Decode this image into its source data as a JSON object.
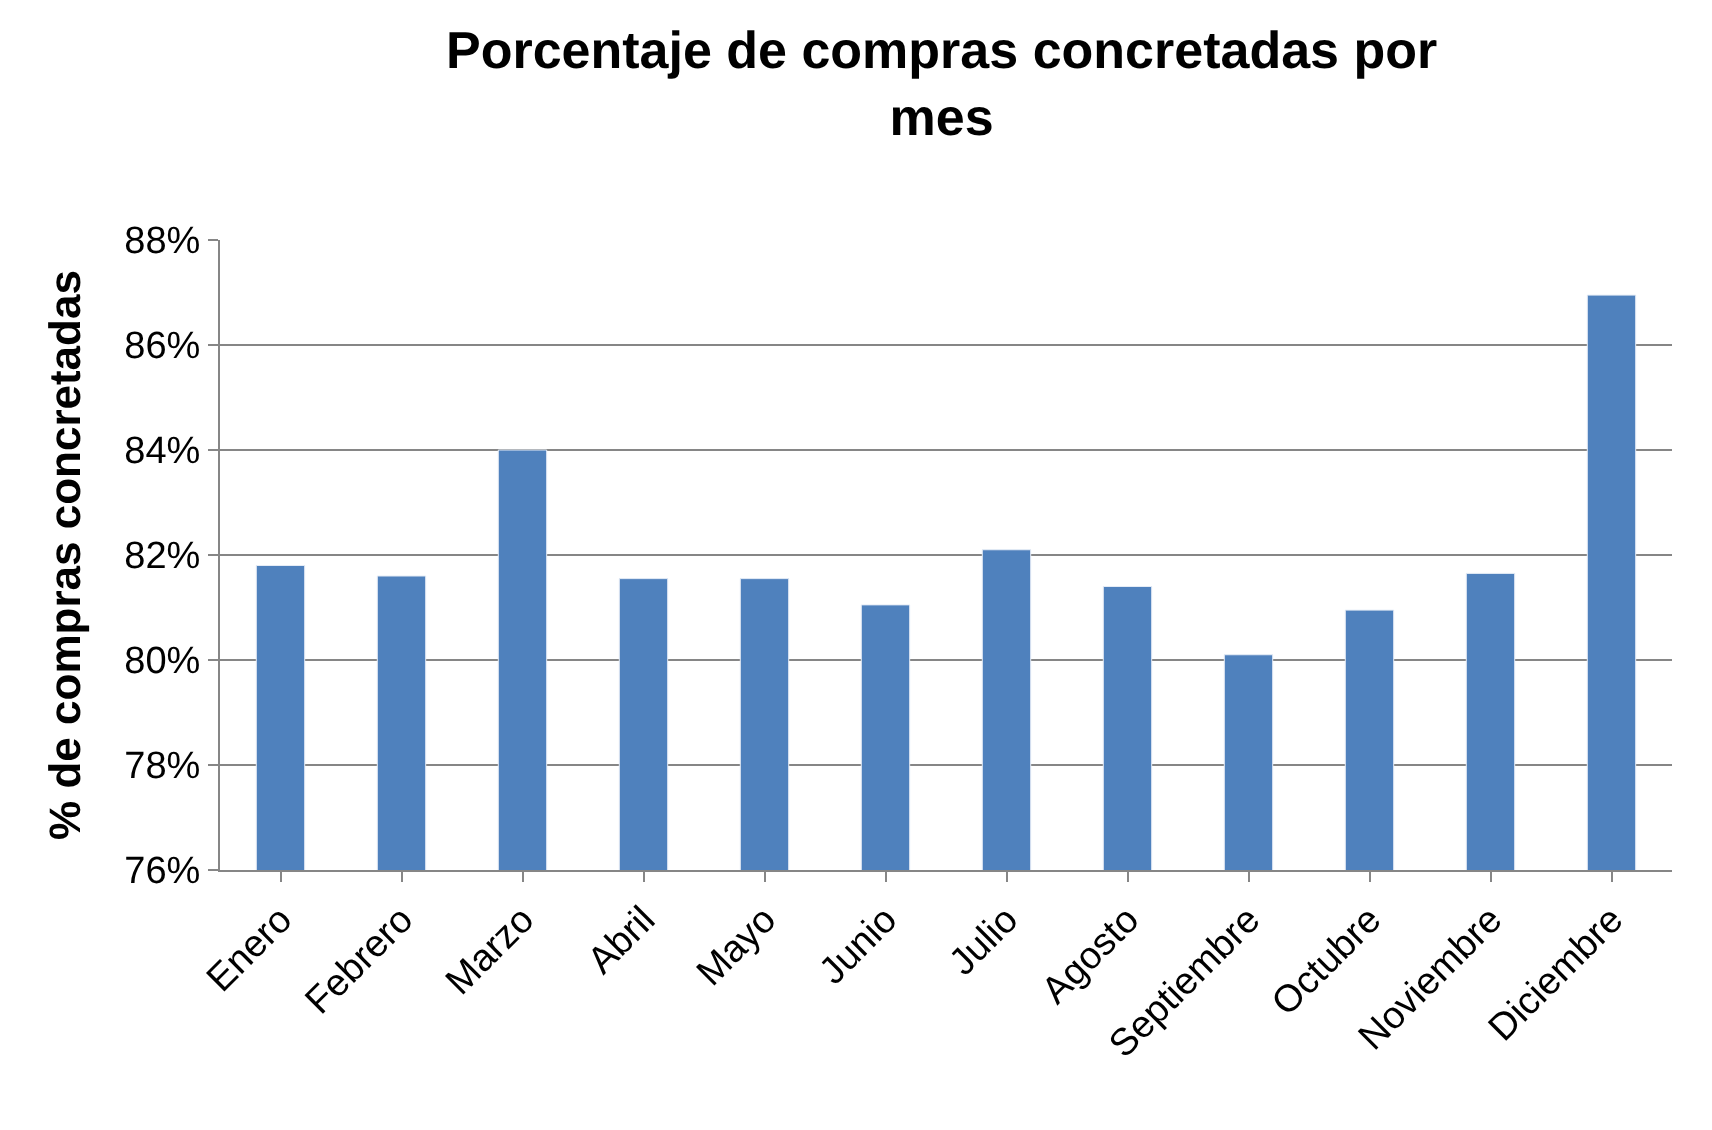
{
  "chart_data": {
    "type": "bar",
    "title": "Porcentaje de compras concretadas por mes",
    "ylabel": "% de compras concretadas",
    "categories": [
      "Enero",
      "Febrero",
      "Marzo",
      "Abril",
      "Mayo",
      "Junio",
      "Julio",
      "Agosto",
      "Septiembre",
      "Octubre",
      "Noviembre",
      "Diciembre"
    ],
    "values": [
      81.8,
      81.6,
      84.0,
      81.55,
      81.55,
      81.05,
      82.1,
      81.4,
      80.1,
      80.95,
      81.65,
      86.95
    ],
    "color": "#4f81bd",
    "ylim": [
      76,
      88
    ],
    "yticks": [
      {
        "value": 76,
        "label": "76%"
      },
      {
        "value": 78,
        "label": "78%"
      },
      {
        "value": 80,
        "label": "80%"
      },
      {
        "value": 82,
        "label": "82%"
      },
      {
        "value": 84,
        "label": "84%"
      },
      {
        "value": 86,
        "label": "86%"
      },
      {
        "value": 88,
        "label": "88%"
      }
    ],
    "grid": "y"
  }
}
